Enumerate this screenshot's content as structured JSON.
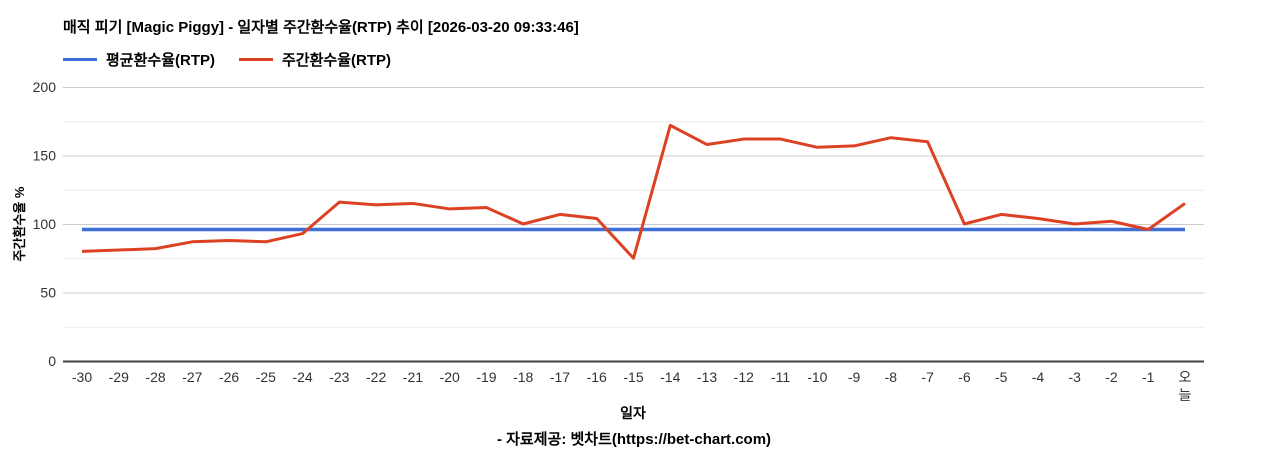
{
  "header": {
    "title": "매직 피기 [Magic Piggy] - 일자별 주간환수율(RTP) 추이 [2026-03-20 09:33:46]"
  },
  "legend": {
    "items": [
      {
        "label": "평균환수율(RTP)",
        "color": "#3e6fd6"
      },
      {
        "label": "주간환수율(RTP)",
        "color": "#dd4124"
      }
    ]
  },
  "chart_data": {
    "type": "line",
    "title": "매직 피기 [Magic Piggy] - 일자별 주간환수율(RTP) 추이 [2026-03-20 09:33:46]",
    "xlabel": "일자",
    "ylabel": "주간환수율 %",
    "ylim": [
      0,
      200
    ],
    "yticks": [
      0,
      50,
      100,
      150,
      200
    ],
    "grid": "horizontal major every 50, minor every 25",
    "legend_position": "top-left",
    "categories": [
      "-30",
      "-29",
      "-28",
      "-27",
      "-26",
      "-25",
      "-24",
      "-23",
      "-22",
      "-21",
      "-20",
      "-19",
      "-18",
      "-17",
      "-16",
      "-15",
      "-14",
      "-13",
      "-12",
      "-11",
      "-10",
      "-9",
      "-8",
      "-7",
      "-6",
      "-5",
      "-4",
      "-3",
      "-2",
      "-1",
      "오늘"
    ],
    "series": [
      {
        "name": "평균환수율(RTP)",
        "color": "#3e6fd6",
        "width": 3.5,
        "values": [
          96,
          96,
          96,
          96,
          96,
          96,
          96,
          96,
          96,
          96,
          96,
          96,
          96,
          96,
          96,
          96,
          96,
          96,
          96,
          96,
          96,
          96,
          96,
          96,
          96,
          96,
          96,
          96,
          96,
          96,
          96
        ]
      },
      {
        "name": "주간환수율(RTP)",
        "color": "#dd4124",
        "width": 3,
        "values": [
          80,
          81,
          82,
          87,
          88,
          87,
          93,
          116,
          114,
          115,
          111,
          112,
          100,
          107,
          104,
          75,
          172,
          158,
          162,
          162,
          156,
          157,
          163,
          160,
          100,
          107,
          104,
          100,
          102,
          96,
          115
        ]
      }
    ]
  },
  "footer": {
    "credit": "- 자료제공: 벳차트(https://bet-chart.com)"
  }
}
